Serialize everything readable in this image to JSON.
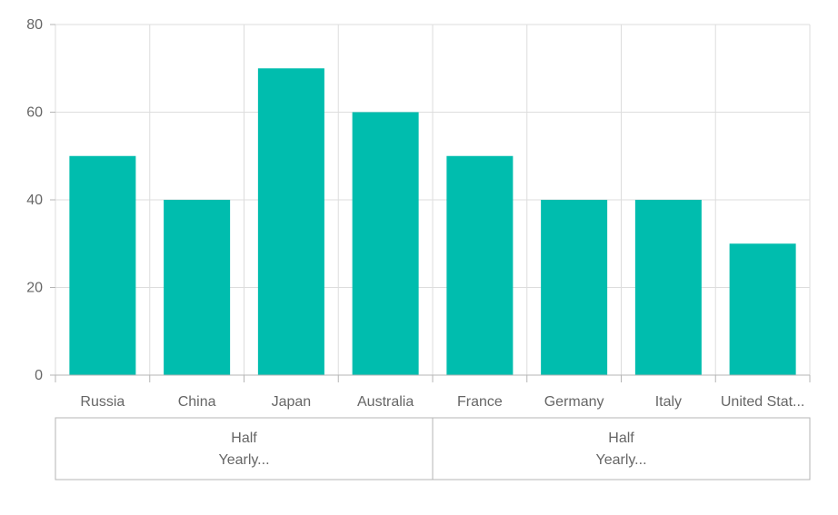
{
  "chart_data": {
    "type": "bar",
    "categories": [
      "Russia",
      "China",
      "Japan",
      "Australia",
      "France",
      "Germany",
      "Italy",
      "United Stat..."
    ],
    "series": [
      {
        "values": [
          50,
          40,
          70,
          60,
          50,
          40,
          40,
          30
        ],
        "color": "#00BDAE"
      }
    ],
    "ylim": [
      0,
      80
    ],
    "yticks": [
      0,
      20,
      40,
      60,
      80
    ],
    "ytick_labels": [
      "0",
      "20",
      "40",
      "60",
      "80"
    ],
    "grid": true,
    "groups": [
      {
        "label_line1": "Half",
        "label_line2": "Yearly...",
        "span": [
          0,
          3
        ]
      },
      {
        "label_line1": "Half",
        "label_line2": "Yearly...",
        "span": [
          4,
          7
        ]
      }
    ],
    "colors": {
      "bar": "#00BDAE",
      "grid": "#dddddd",
      "axis": "#b5b5b5",
      "text": "#666666"
    }
  }
}
